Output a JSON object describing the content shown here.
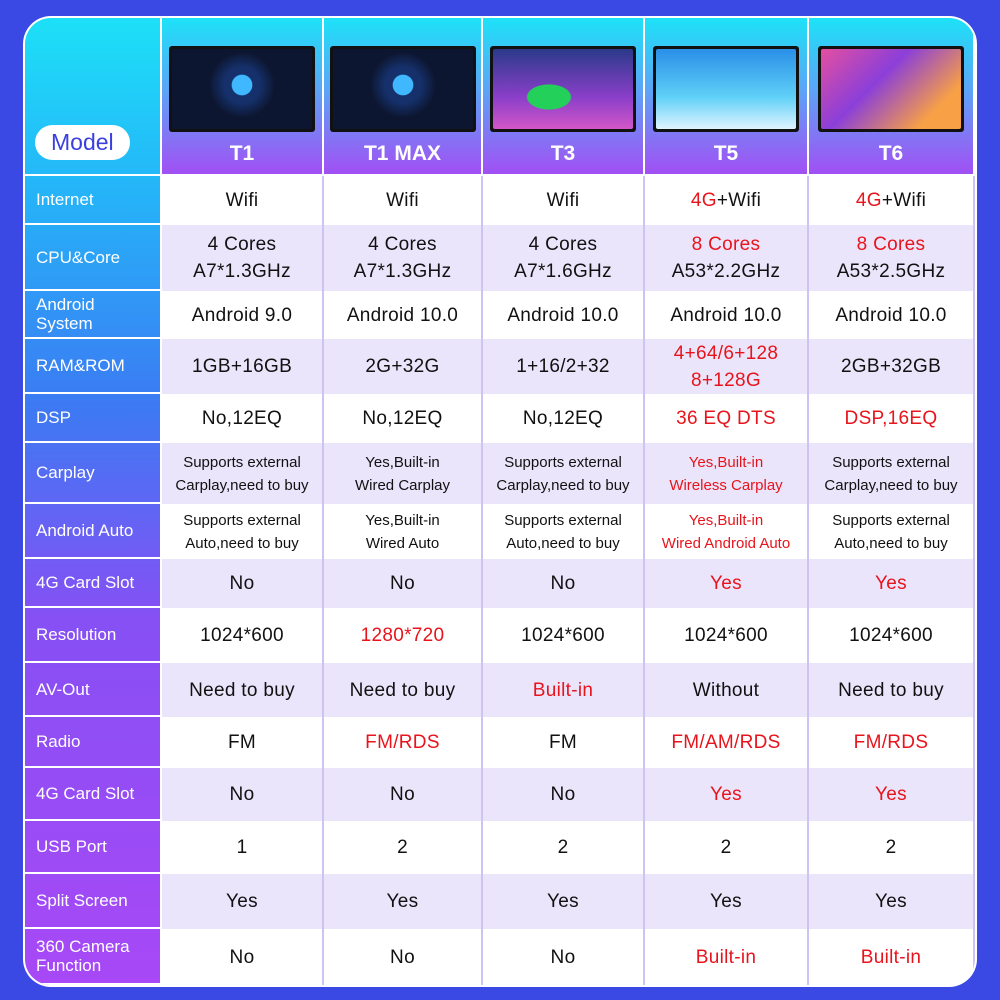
{
  "header_label": "Model",
  "products": [
    {
      "name": "T1",
      "screen": "dashboard-120"
    },
    {
      "name": "T1 MAX",
      "screen": "dashboard-120"
    },
    {
      "name": "T3",
      "screen": "green-sports-car"
    },
    {
      "name": "T5",
      "screen": "launcher-08:04"
    },
    {
      "name": "T6",
      "screen": "music-launcher"
    }
  ],
  "colors": {
    "background": "#3a48e4",
    "highlight": "#e8141c",
    "alt_row": "#ebe5fb"
  },
  "rows": [
    {
      "label": "Internet",
      "cells": [
        {
          "text": "Wifi"
        },
        {
          "text": "Wifi"
        },
        {
          "text": "Wifi"
        },
        {
          "text": "4G+Wifi",
          "red_part": "4G"
        },
        {
          "text": "4G+Wifi",
          "red_part": "4G"
        }
      ]
    },
    {
      "label": "CPU&Core",
      "cells": [
        {
          "text": "4 Cores\nA7*1.3GHz"
        },
        {
          "text": "4 Cores\nA7*1.3GHz"
        },
        {
          "text": "4 Cores\nA7*1.6GHz"
        },
        {
          "text": "8 Cores\nA53*2.2GHz",
          "red_part": "8 Cores"
        },
        {
          "text": "8 Cores\nA53*2.5GHz",
          "red_part": "8 Cores"
        }
      ]
    },
    {
      "label": "Android\nSystem",
      "cells": [
        {
          "text": "Android 9.0"
        },
        {
          "text": "Android 10.0"
        },
        {
          "text": "Android 10.0"
        },
        {
          "text": "Android 10.0"
        },
        {
          "text": "Android 10.0"
        }
      ]
    },
    {
      "label": "RAM&ROM",
      "cells": [
        {
          "text": "1GB+16GB"
        },
        {
          "text": "2G+32G"
        },
        {
          "text": "1+16/2+32"
        },
        {
          "text": "4+64/6+128\n8+128G",
          "red": true
        },
        {
          "text": "2GB+32GB"
        }
      ]
    },
    {
      "label": "DSP",
      "cells": [
        {
          "text": "No,12EQ"
        },
        {
          "text": "No,12EQ"
        },
        {
          "text": "No,12EQ"
        },
        {
          "text": "36 EQ DTS",
          "red": true
        },
        {
          "text": "DSP,16EQ",
          "red": true
        }
      ]
    },
    {
      "label": "Carplay",
      "small": true,
      "cells": [
        {
          "text": "Supports external\nCarplay,need to buy"
        },
        {
          "text": "Yes,Built-in\nWired Carplay"
        },
        {
          "text": "Supports external\nCarplay,need to buy"
        },
        {
          "text": "Yes,Built-in\nWireless Carplay",
          "red": true
        },
        {
          "text": "Supports external\nCarplay,need to buy"
        }
      ]
    },
    {
      "label": "Android Auto",
      "small": true,
      "cells": [
        {
          "text": "Supports external\nAuto,need to buy"
        },
        {
          "text": "Yes,Built-in\nWired Auto"
        },
        {
          "text": "Supports external\nAuto,need to buy"
        },
        {
          "text": "Yes,Built-in\nWired Android Auto",
          "red": true
        },
        {
          "text": "Supports external\nAuto,need to buy"
        }
      ]
    },
    {
      "label": "4G Card Slot",
      "cells": [
        {
          "text": "No"
        },
        {
          "text": "No"
        },
        {
          "text": "No"
        },
        {
          "text": "Yes",
          "red": true
        },
        {
          "text": "Yes",
          "red": true
        }
      ]
    },
    {
      "label": "Resolution",
      "cells": [
        {
          "text": "1024*600"
        },
        {
          "text": "1280*720",
          "red": true
        },
        {
          "text": "1024*600"
        },
        {
          "text": "1024*600"
        },
        {
          "text": "1024*600"
        }
      ]
    },
    {
      "label": "AV-Out",
      "cells": [
        {
          "text": "Need to buy"
        },
        {
          "text": "Need to buy"
        },
        {
          "text": "Built-in",
          "red": true
        },
        {
          "text": "Without"
        },
        {
          "text": "Need to buy"
        }
      ]
    },
    {
      "label": "Radio",
      "cells": [
        {
          "text": "FM"
        },
        {
          "text": "FM/RDS",
          "red": true
        },
        {
          "text": "FM"
        },
        {
          "text": "FM/AM/RDS",
          "red": true
        },
        {
          "text": "FM/RDS",
          "red": true
        }
      ]
    },
    {
      "label": "4G Card Slot",
      "cells": [
        {
          "text": "No"
        },
        {
          "text": "No"
        },
        {
          "text": "No"
        },
        {
          "text": "Yes",
          "red": true
        },
        {
          "text": "Yes",
          "red": true
        }
      ]
    },
    {
      "label": "USB Port",
      "cells": [
        {
          "text": "1"
        },
        {
          "text": "2"
        },
        {
          "text": "2"
        },
        {
          "text": "2"
        },
        {
          "text": "2"
        }
      ]
    },
    {
      "label": "Split Screen",
      "cells": [
        {
          "text": "Yes"
        },
        {
          "text": "Yes"
        },
        {
          "text": "Yes"
        },
        {
          "text": "Yes"
        },
        {
          "text": "Yes"
        }
      ]
    },
    {
      "label": "360 Camera\nFunction",
      "cells": [
        {
          "text": "No"
        },
        {
          "text": "No"
        },
        {
          "text": "No"
        },
        {
          "text": "Built-in",
          "red": true
        },
        {
          "text": "Built-in",
          "red": true
        }
      ]
    }
  ]
}
